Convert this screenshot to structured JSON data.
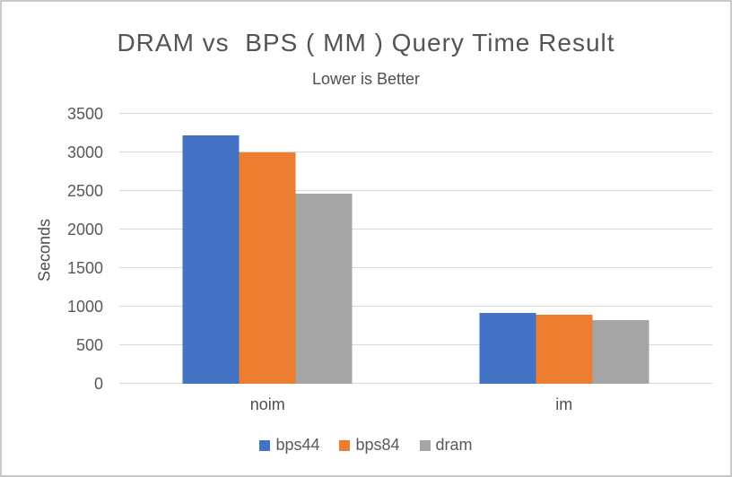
{
  "frame": {
    "background": "#ffffff",
    "border_color": "#c9c9c9"
  },
  "chart_data": {
    "type": "bar",
    "title": "DRAM vs  BPS ( MM ) Query Time Result",
    "subtitle": "Lower is Better",
    "ylabel": "Seconds",
    "xlabel": "",
    "categories": [
      "noim",
      "im"
    ],
    "series": [
      {
        "name": "bps44",
        "color": "#4472C4",
        "values": [
          3220,
          915
        ]
      },
      {
        "name": "bps84",
        "color": "#ED7D31",
        "values": [
          3000,
          900
        ]
      },
      {
        "name": "dram",
        "color": "#A5A5A5",
        "values": [
          2470,
          820
        ]
      }
    ],
    "ylim": [
      0,
      3500
    ],
    "yticks": [
      0,
      500,
      1000,
      1500,
      2000,
      2500,
      3000,
      3500
    ],
    "grid": true,
    "gridline_color": "#d9d9d9",
    "legend_position": "bottom"
  }
}
